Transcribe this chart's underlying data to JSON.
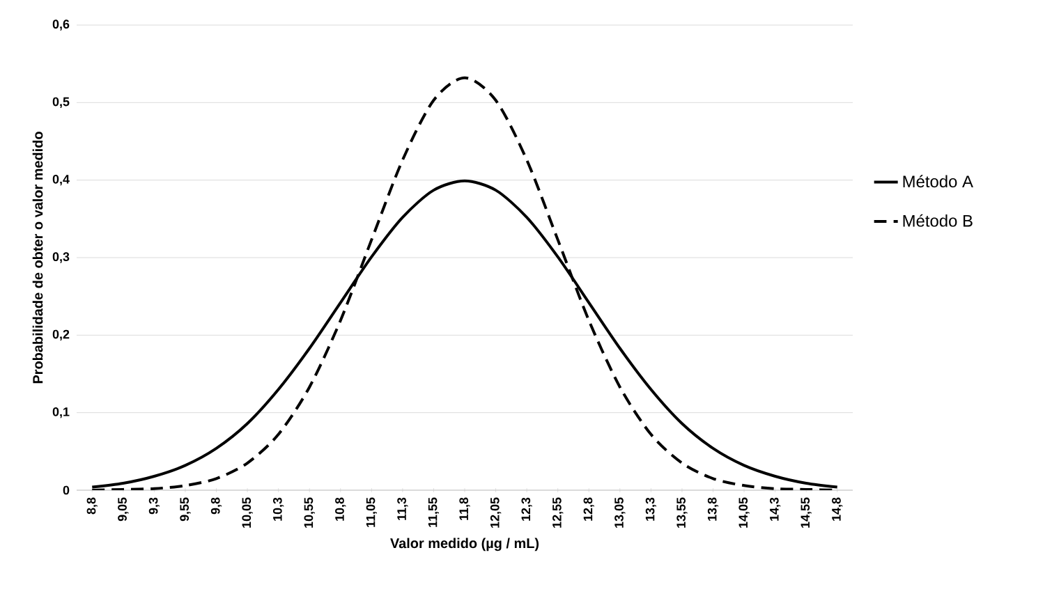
{
  "chart_data": {
    "type": "line",
    "xlabel": "Valor medido (µg / mL)",
    "ylabel": "Probabilidade de obter o valor medido",
    "categories": [
      "8,8",
      "9,05",
      "9,3",
      "9,55",
      "9,8",
      "10,05",
      "10,3",
      "10,55",
      "10,8",
      "11,05",
      "11,3",
      "11,55",
      "11,8",
      "12,05",
      "12,3",
      "12,55",
      "12,8",
      "13,05",
      "13,3",
      "13,55",
      "13,8",
      "14,05",
      "14,3",
      "14,55",
      "14,8"
    ],
    "series": [
      {
        "name": "Método A",
        "color": "#000000",
        "line_style": "solid",
        "values": [
          0.004,
          0.009,
          0.018,
          0.032,
          0.054,
          0.086,
          0.13,
          0.183,
          0.242,
          0.301,
          0.352,
          0.387,
          0.399,
          0.387,
          0.352,
          0.301,
          0.242,
          0.183,
          0.13,
          0.086,
          0.054,
          0.032,
          0.018,
          0.009,
          0.004
        ]
      },
      {
        "name": "Método B",
        "color": "#000000",
        "line_style": "dashed",
        "values": [
          0.0,
          0.001,
          0.002,
          0.006,
          0.015,
          0.035,
          0.072,
          0.133,
          0.219,
          0.323,
          0.426,
          0.503,
          0.532,
          0.503,
          0.426,
          0.323,
          0.219,
          0.133,
          0.072,
          0.035,
          0.015,
          0.006,
          0.002,
          0.001,
          0.0
        ]
      }
    ],
    "ylim": [
      0,
      0.6
    ],
    "yticks": [
      {
        "value": 0,
        "label": "0"
      },
      {
        "value": 0.1,
        "label": "0,1"
      },
      {
        "value": 0.2,
        "label": "0,2"
      },
      {
        "value": 0.3,
        "label": "0,3"
      },
      {
        "value": 0.4,
        "label": "0,4"
      },
      {
        "value": 0.5,
        "label": "0,5"
      },
      {
        "value": 0.6,
        "label": "0,6"
      }
    ],
    "grid": "y",
    "legend": "right"
  }
}
